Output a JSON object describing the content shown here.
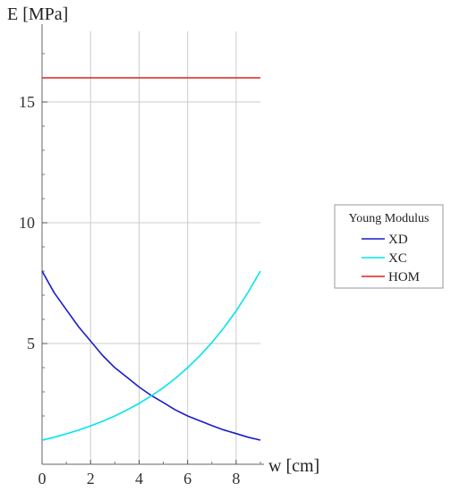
{
  "chart_data": {
    "type": "line",
    "ylabel": "E [MPa]",
    "xlabel": "w [cm]",
    "xlim": [
      0,
      9
    ],
    "ylim": [
      0,
      18
    ],
    "x_ticks": [
      0,
      2,
      4,
      6,
      8
    ],
    "y_ticks": [
      5,
      10,
      15
    ],
    "grid": true,
    "legend": {
      "title": "Young Modulus",
      "placement": "right"
    },
    "series": [
      {
        "name": "XD",
        "color": "#1a1acc",
        "x": [
          0,
          0.5,
          1,
          1.5,
          2,
          2.5,
          3,
          3.5,
          4,
          4.5,
          5,
          5.5,
          6,
          6.5,
          7,
          7.5,
          8,
          8.5,
          9
        ],
        "y": [
          8.0,
          7.1,
          6.4,
          5.7,
          5.1,
          4.5,
          4.0,
          3.6,
          3.2,
          2.85,
          2.55,
          2.25,
          2.0,
          1.8,
          1.6,
          1.42,
          1.27,
          1.12,
          1.0
        ]
      },
      {
        "name": "XC",
        "color": "#00e5ee",
        "x": [
          0,
          0.5,
          1,
          1.5,
          2,
          2.5,
          3,
          3.5,
          4,
          4.5,
          5,
          5.5,
          6,
          6.5,
          7,
          7.5,
          8,
          8.5,
          9
        ],
        "y": [
          1.0,
          1.12,
          1.26,
          1.41,
          1.59,
          1.78,
          2.0,
          2.25,
          2.52,
          2.83,
          3.17,
          3.56,
          4.0,
          4.49,
          5.04,
          5.66,
          6.35,
          7.13,
          8.0
        ]
      },
      {
        "name": "HOM",
        "color": "#e02020",
        "x": [
          0,
          9
        ],
        "y": [
          16.0,
          16.0
        ]
      }
    ]
  }
}
